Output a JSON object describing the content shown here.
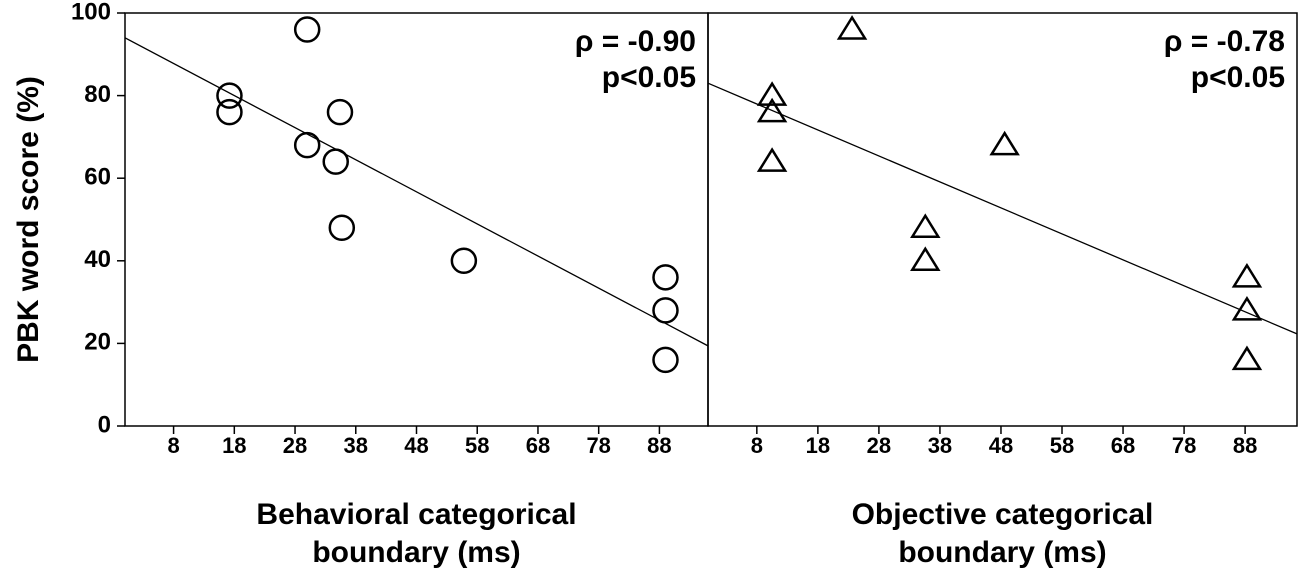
{
  "chart_data": [
    {
      "type": "scatter",
      "ylabel": "PBK word score (%)",
      "xlabel": "Behavioral categorical boundary (ms)",
      "xlim": [
        0,
        96
      ],
      "xticks": [
        8,
        18,
        28,
        38,
        48,
        58,
        68,
        78,
        88
      ],
      "ylim": [
        0,
        100
      ],
      "yticks": [
        0,
        20,
        40,
        60,
        80,
        100
      ],
      "series": [
        {
          "marker": "circle",
          "color": "#000000",
          "x": [
            17.2,
            17.2,
            30,
            30,
            35.4,
            34.7,
            35.7,
            55.8,
            89,
            89,
            89
          ],
          "values": [
            80,
            76,
            96,
            68,
            76,
            64,
            48,
            40,
            36,
            28,
            16
          ]
        }
      ],
      "fit_line": {
        "x": [
          0,
          96
        ],
        "y": [
          94,
          19.4
        ]
      },
      "annotations": [
        "ρ = -0.90",
        "p<0.05"
      ]
    },
    {
      "type": "scatter",
      "xlabel": "Objective categorical boundary (ms)",
      "xlim": [
        0,
        96.5
      ],
      "xticks": [
        8,
        18,
        28,
        38,
        48,
        58,
        68,
        78,
        88
      ],
      "ylim": [
        0,
        100
      ],
      "series": [
        {
          "marker": "triangle",
          "color": "#000000",
          "x": [
            10.5,
            10.5,
            10.5,
            23.6,
            35.6,
            35.6,
            48.6,
            88.3,
            88.3,
            88.3
          ],
          "values": [
            80,
            76,
            64,
            96,
            48,
            40,
            68,
            36,
            28,
            16
          ]
        }
      ],
      "fit_line": {
        "x": [
          0,
          96.5
        ],
        "y": [
          83,
          22.3
        ]
      },
      "annotations": [
        "ρ = -0.78",
        "p<0.05"
      ]
    }
  ]
}
